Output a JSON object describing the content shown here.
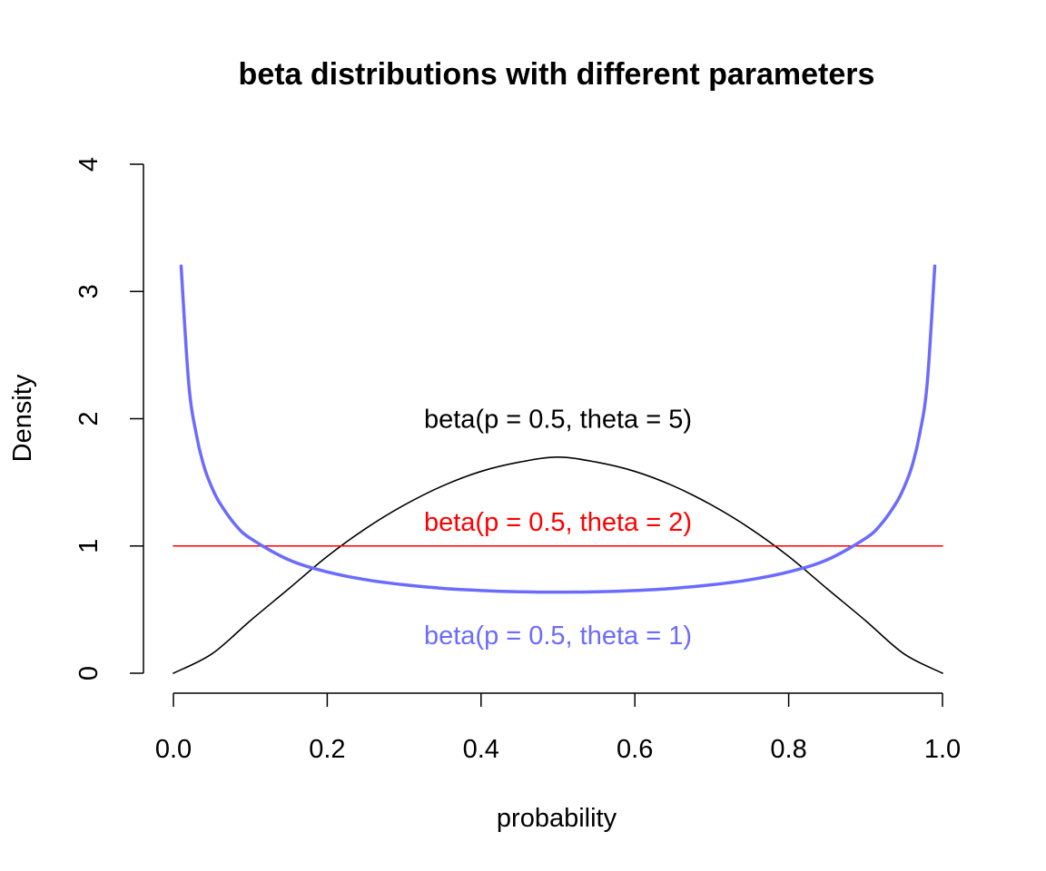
{
  "chart_data": {
    "type": "line",
    "title": "beta distributions with different parameters",
    "xlabel": "probability",
    "ylabel": "Density",
    "xlim": [
      0,
      1
    ],
    "ylim": [
      0,
      4
    ],
    "x_ticks": [
      "0.0",
      "0.2",
      "0.4",
      "0.6",
      "0.8",
      "1.0"
    ],
    "y_ticks": [
      "0",
      "1",
      "2",
      "3",
      "4"
    ],
    "grid": false,
    "series": [
      {
        "name": "beta(p = 0.5, theta = 5)",
        "color": "#000000",
        "x": [
          0.0,
          0.05,
          0.1,
          0.15,
          0.2,
          0.25,
          0.3,
          0.35,
          0.4,
          0.45,
          0.5,
          0.55,
          0.6,
          0.65,
          0.7,
          0.75,
          0.8,
          0.85,
          0.9,
          0.95,
          1.0
        ],
        "y": [
          0.0,
          0.152,
          0.413,
          0.664,
          0.918,
          1.137,
          1.321,
          1.472,
          1.586,
          1.659,
          1.698,
          1.659,
          1.586,
          1.472,
          1.321,
          1.137,
          0.918,
          0.664,
          0.413,
          0.152,
          0.0
        ]
      },
      {
        "name": "beta(p = 0.5, theta = 2)",
        "color": "#ff0000",
        "x": [
          0.0,
          1.0
        ],
        "y": [
          1.0,
          1.0
        ]
      },
      {
        "name": "beta(p = 0.5, theta = 1)",
        "color": "#6b6bff",
        "x": [
          0.01,
          0.02,
          0.03,
          0.04,
          0.05,
          0.06,
          0.08,
          0.1,
          0.15,
          0.2,
          0.25,
          0.3,
          0.35,
          0.4,
          0.45,
          0.5,
          0.55,
          0.6,
          0.65,
          0.7,
          0.75,
          0.8,
          0.85,
          0.9,
          0.92,
          0.94,
          0.95,
          0.96,
          0.97,
          0.98,
          0.99
        ],
        "y": [
          3.2,
          2.27,
          1.87,
          1.62,
          1.46,
          1.34,
          1.17,
          1.06,
          0.891,
          0.796,
          0.735,
          0.695,
          0.667,
          0.65,
          0.64,
          0.637,
          0.64,
          0.65,
          0.667,
          0.695,
          0.735,
          0.796,
          0.891,
          1.06,
          1.17,
          1.34,
          1.46,
          1.62,
          1.87,
          2.27,
          3.2
        ]
      }
    ],
    "annotations": [
      {
        "text": "beta(p = 0.5, theta = 5)",
        "x": 0.5,
        "y": 2.0,
        "color": "#000000"
      },
      {
        "text": "beta(p = 0.5, theta = 2)",
        "x": 0.5,
        "y": 1.19,
        "color": "#ff0000"
      },
      {
        "text": "beta(p = 0.5, theta = 1)",
        "x": 0.5,
        "y": 0.3,
        "color": "#6b6bff"
      }
    ]
  }
}
